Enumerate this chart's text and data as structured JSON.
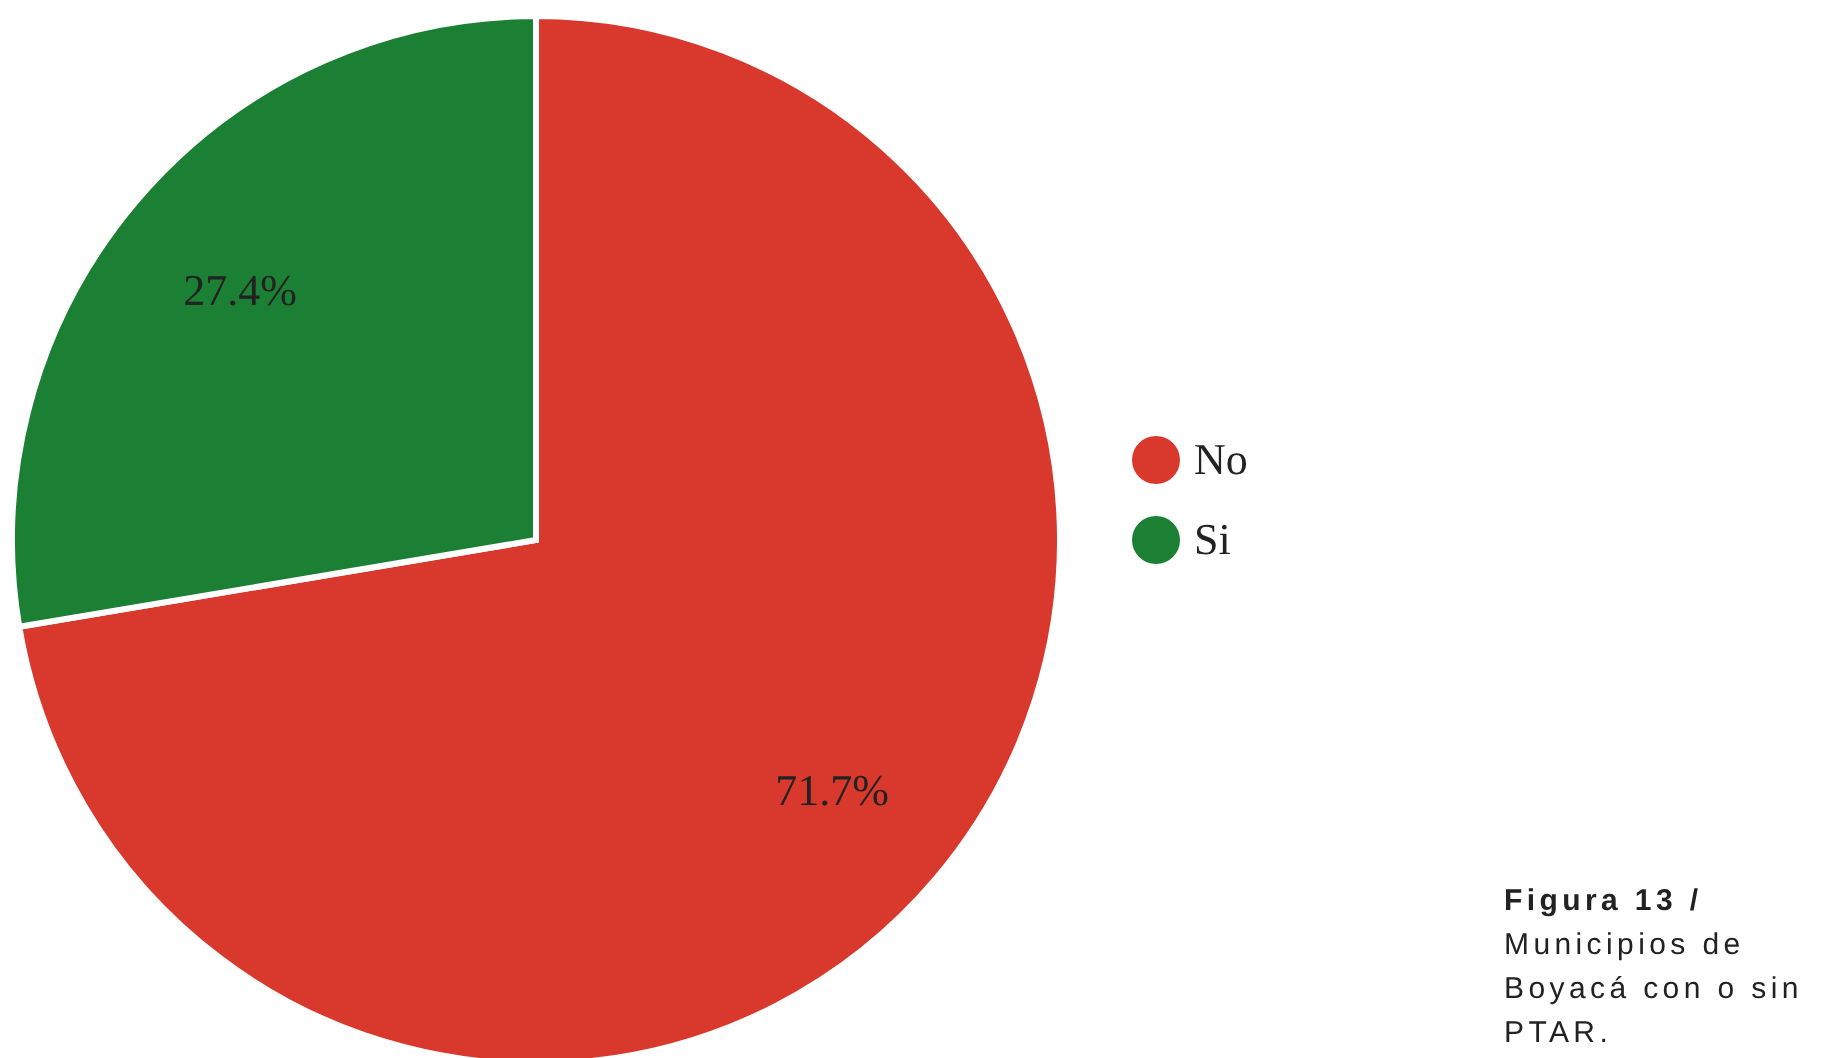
{
  "chart_data": {
    "type": "pie",
    "categories": [
      "No",
      "Si"
    ],
    "values": [
      71.7,
      27.4
    ],
    "colors": [
      "#d9382c",
      "#1b7f34"
    ],
    "value_labels": [
      "71.7%",
      "27.4%"
    ],
    "legend": "right",
    "annotations": [
      "Figura 13 /",
      "Municipios de Boyacá con o sin PTAR."
    ]
  }
}
